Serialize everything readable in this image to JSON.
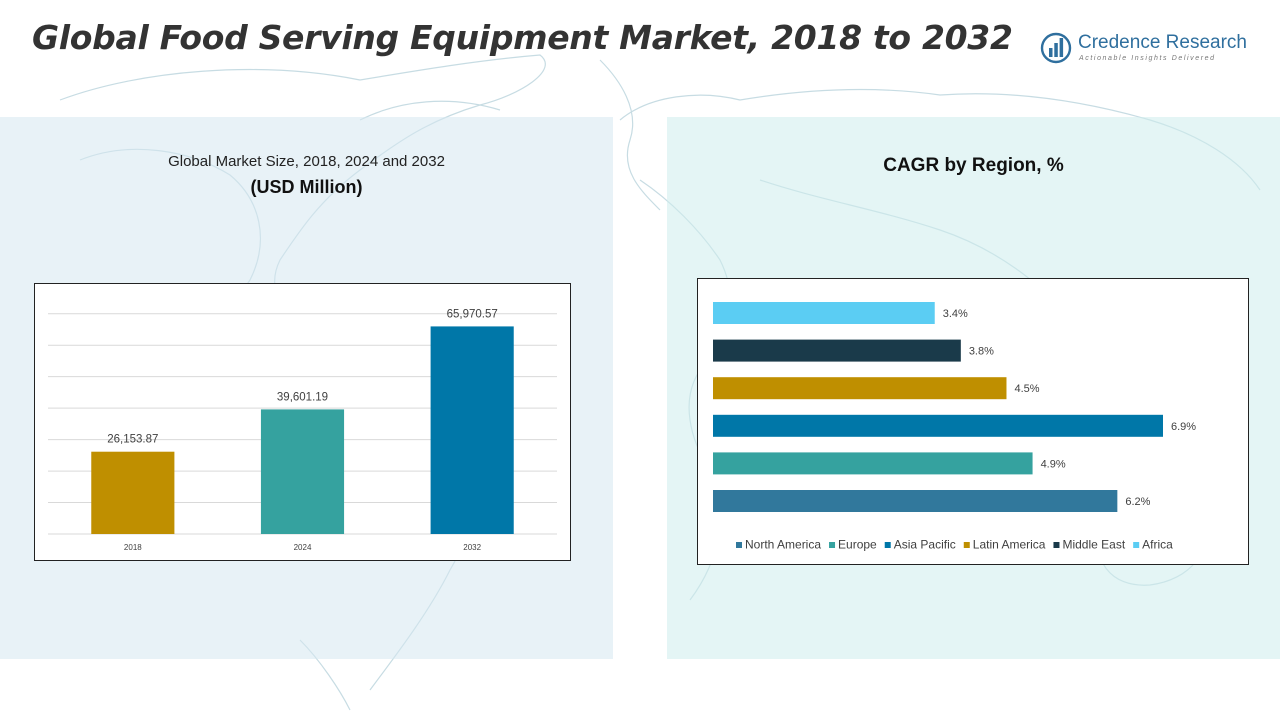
{
  "header": {
    "title": "Global Food Serving Equipment Market, 2018 to 2032"
  },
  "logo": {
    "name": "Credence Research",
    "tagline": "Actionable Insights Delivered",
    "icon": "bar-chart-globe-icon"
  },
  "left_panel": {
    "subtitle": "Global Market Size, 2018, 2024 and 2032",
    "unit": "(USD Million)"
  },
  "right_panel": {
    "title": "CAGR by Region, %"
  },
  "colors": {
    "gold": "#BF8F00",
    "teal": "#35A29F",
    "blue": "#0077A8",
    "steel": "#31789C",
    "navy": "#1A3A4A",
    "sky": "#5BCDF3"
  },
  "chart_data": [
    {
      "type": "bar",
      "title": "Global Market Size, 2018, 2024 and 2032",
      "ylabel": "(USD Million)",
      "categories": [
        "2018",
        "2024",
        "2032"
      ],
      "values": [
        26153.87,
        39601.19,
        65970.57
      ],
      "value_labels": [
        "26,153.87",
        "39,601.19",
        "65,970.57"
      ],
      "bar_colors": [
        "#BF8F00",
        "#35A29F",
        "#0077A8"
      ],
      "ylim": [
        0,
        75000
      ],
      "grid": true
    },
    {
      "type": "bar",
      "orientation": "horizontal",
      "title": "CAGR by Region, %",
      "categories": [
        "North America",
        "Europe",
        "Asia Pacific",
        "Latin America",
        "Middle East",
        "Africa"
      ],
      "values": [
        6.2,
        4.9,
        6.9,
        4.5,
        3.8,
        3.4
      ],
      "value_labels": [
        "6.2%",
        "4.9%",
        "6.9%",
        "4.5%",
        "3.8%",
        "3.4%"
      ],
      "bar_colors": [
        "#31789C",
        "#35A29F",
        "#0077A8",
        "#BF8F00",
        "#1A3A4A",
        "#5BCDF3"
      ],
      "legend": "bottom",
      "grid": false
    }
  ]
}
